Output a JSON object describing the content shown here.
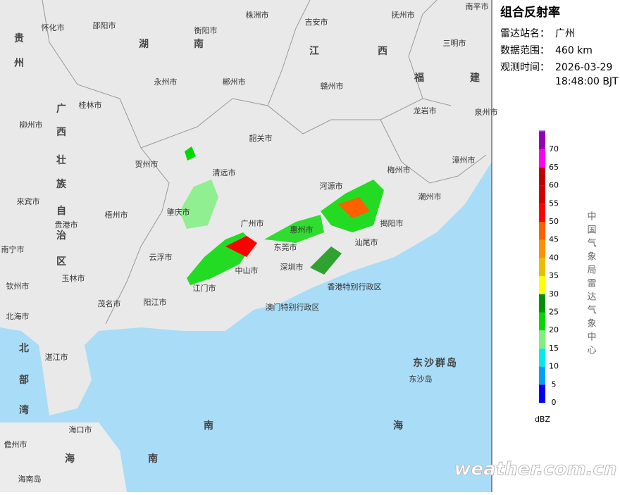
{
  "panel": {
    "title": "组合反射率",
    "station_label": "雷达站名：",
    "station": "广州",
    "range_label": "数据范围：",
    "range": "460 km",
    "time_label": "观测时间：",
    "date": "2026-03-29",
    "time": "18:48:00 BJT"
  },
  "legend": {
    "ticks": [
      0,
      5,
      10,
      15,
      20,
      25,
      30,
      35,
      40,
      45,
      50,
      55,
      60,
      65,
      70
    ],
    "colors": [
      "#0000f6",
      "#01a0f6",
      "#00ecec",
      "#80f080",
      "#00d800",
      "#019000",
      "#ffff00",
      "#e7c000",
      "#ff9000",
      "#ff6000",
      "#ff0000",
      "#d00000",
      "#c00000",
      "#ff00f0",
      "#9600b4",
      "#ad90f0"
    ],
    "unit": "dBZ",
    "source": "中国气象局雷达气象中心"
  },
  "map": {
    "labels": [
      "怀化市",
      "邵阳市",
      "衡阳市",
      "株洲市",
      "吉安市",
      "抚州市",
      "南平市",
      "湖",
      "南",
      "江",
      "西",
      "三明市",
      "贵",
      "州",
      "永州市",
      "郴州市",
      "赣州市",
      "福",
      "建",
      "桂林市",
      "广",
      "西",
      "壮",
      "族",
      "自",
      "治",
      "区",
      "柳州市",
      "龙岩市",
      "泉州市",
      "韶关市",
      "贺州市",
      "清远市",
      "梅州市",
      "漳州市",
      "河源市",
      "来宾市",
      "梧州市",
      "肇庆市",
      "潮州市",
      "贵港市",
      "广州市",
      "揭阳市",
      "惠州市",
      "汕尾市",
      "南宁市",
      "云浮市",
      "东莞市",
      "深圳市",
      "中山市",
      "玉林市",
      "钦州市",
      "江门市",
      "香港特别行政区",
      "茂名市",
      "阳江市",
      "澳门特别行政区",
      "北海市",
      "湛江市",
      "东沙群岛",
      "东沙岛",
      "北",
      "部",
      "湾",
      "南",
      "海",
      "海口市",
      "儋州市",
      "海",
      "南",
      "海南岛"
    ],
    "watermark": "weather.com.cn"
  }
}
